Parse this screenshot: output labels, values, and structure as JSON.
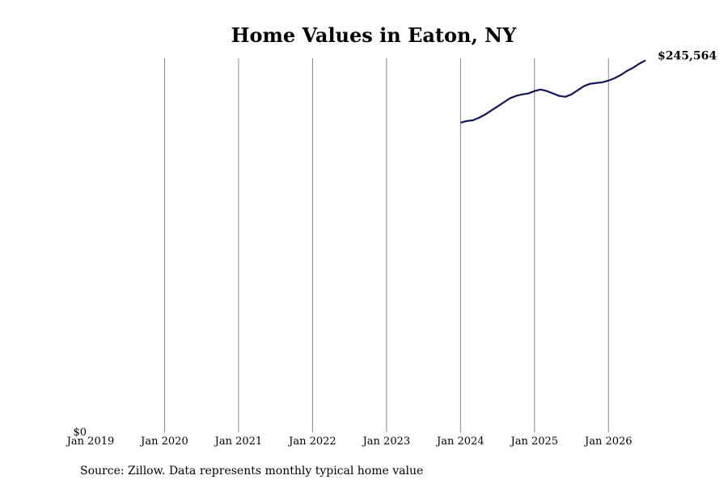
{
  "chart_data": {
    "type": "line",
    "title": "Home Values in Eaton, NY",
    "source": "Source: Zillow. Data represents monthly typical home value",
    "x": [
      "2024-01",
      "2024-02",
      "2024-03",
      "2024-04",
      "2024-05",
      "2024-06",
      "2024-07",
      "2024-08",
      "2024-09",
      "2024-10",
      "2024-11",
      "2024-12",
      "2025-01",
      "2025-02",
      "2025-03",
      "2025-04",
      "2025-05",
      "2025-06",
      "2025-07",
      "2025-08",
      "2025-09",
      "2025-10",
      "2025-11",
      "2025-12",
      "2026-01",
      "2026-02",
      "2026-03",
      "2026-04",
      "2026-05",
      "2026-06",
      "2026-07"
    ],
    "series": [
      {
        "name": "Eaton, NY",
        "color": "#14145a",
        "values": [
          204450,
          205500,
          206000,
          207650,
          209800,
          212500,
          215100,
          217800,
          220500,
          222100,
          223100,
          223700,
          225300,
          226300,
          225300,
          223700,
          222100,
          221500,
          223100,
          225800,
          228500,
          230100,
          230600,
          231100,
          232200,
          233800,
          235900,
          238600,
          240700,
          243400,
          245564
        ],
        "value_labels": [
          null,
          null,
          null,
          null,
          null,
          null,
          null,
          null,
          null,
          null,
          null,
          null,
          null,
          null,
          null,
          null,
          null,
          null,
          null,
          null,
          null,
          null,
          null,
          null,
          null,
          null,
          null,
          null,
          null,
          null,
          "$245,564"
        ]
      }
    ],
    "xlim": [
      "2019-01",
      "2026-07"
    ],
    "xticks": [
      {
        "value": "2019-01",
        "label": "Jan 2019"
      },
      {
        "value": "2020-01",
        "label": "Jan 2020"
      },
      {
        "value": "2021-01",
        "label": "Jan 2021"
      },
      {
        "value": "2022-01",
        "label": "Jan 2022"
      },
      {
        "value": "2023-01",
        "label": "Jan 2023"
      },
      {
        "value": "2024-01",
        "label": "Jan 2024"
      },
      {
        "value": "2025-01",
        "label": "Jan 2025"
      },
      {
        "value": "2026-01",
        "label": "Jan 2026"
      }
    ],
    "ylim": [
      0,
      247000
    ],
    "yticks": [
      {
        "value": 0,
        "label": "$0"
      }
    ],
    "grid": "x"
  }
}
